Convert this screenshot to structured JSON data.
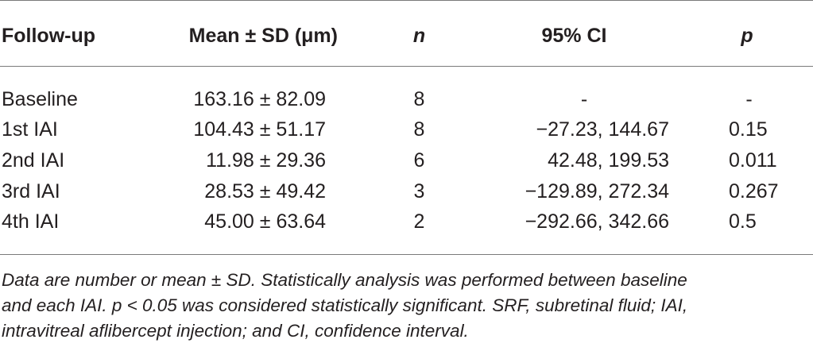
{
  "table": {
    "headers": {
      "follow_up": "Follow-up",
      "mean_sd": "Mean ± SD (μm)",
      "n": "n",
      "ci": "95% CI",
      "p": "p"
    },
    "rows": [
      {
        "follow_up": "Baseline",
        "mean_sd": "163.16 ± 82.09",
        "n": "8",
        "ci": "-",
        "p": "-"
      },
      {
        "follow_up": "1st IAI",
        "mean_sd": "104.43 ± 51.17",
        "n": "8",
        "ci": "−27.23, 144.67",
        "p": "0.15"
      },
      {
        "follow_up": "2nd IAI",
        "mean_sd": "11.98 ± 29.36",
        "n": "6",
        "ci": "42.48, 199.53",
        "p": "0.011"
      },
      {
        "follow_up": "3rd IAI",
        "mean_sd": "28.53 ± 49.42",
        "n": "3",
        "ci": "−129.89, 272.34",
        "p": "0.267"
      },
      {
        "follow_up": "4th IAI",
        "mean_sd": "45.00 ± 63.64",
        "n": "2",
        "ci": "−292.66, 342.66",
        "p": "0.5"
      }
    ]
  },
  "footnote": {
    "line1": "Data are number or mean ± SD. Statistically analysis was performed between baseline",
    "line2": "and each IAI. p < 0.05 was considered statistically significant. SRF, subretinal fluid; IAI,",
    "line3": "intravitreal aflibercept injection; and CI, confidence interval."
  }
}
